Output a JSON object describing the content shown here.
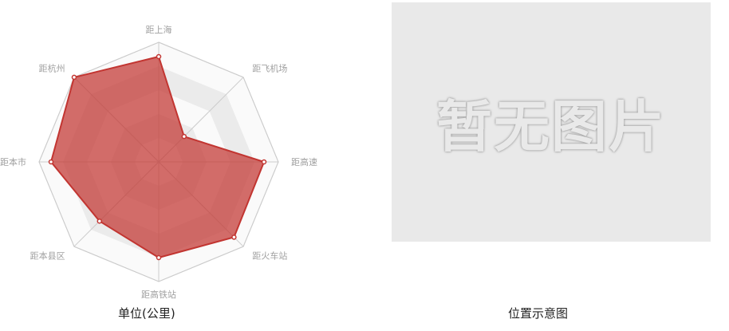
{
  "chart_data": {
    "type": "radar",
    "indicators": [
      "距上海",
      "距飞机场",
      "距高速",
      "距火车站",
      "距高铁站",
      "距本县区",
      "距本市",
      "距杭州"
    ],
    "max": 100,
    "series": [
      {
        "values": [
          88,
          30,
          88,
          89,
          80,
          70,
          90,
          100
        ]
      }
    ],
    "colors": {
      "series_fill": "#c23531",
      "series_line": "#c23531",
      "band_light": "#fafafa",
      "band_dark": "#ebebeb",
      "grid_line": "#cccccc"
    }
  },
  "captions": {
    "radar": "单位(公里)",
    "image": "位置示意图"
  },
  "placeholder": {
    "text": "暂无图片"
  }
}
